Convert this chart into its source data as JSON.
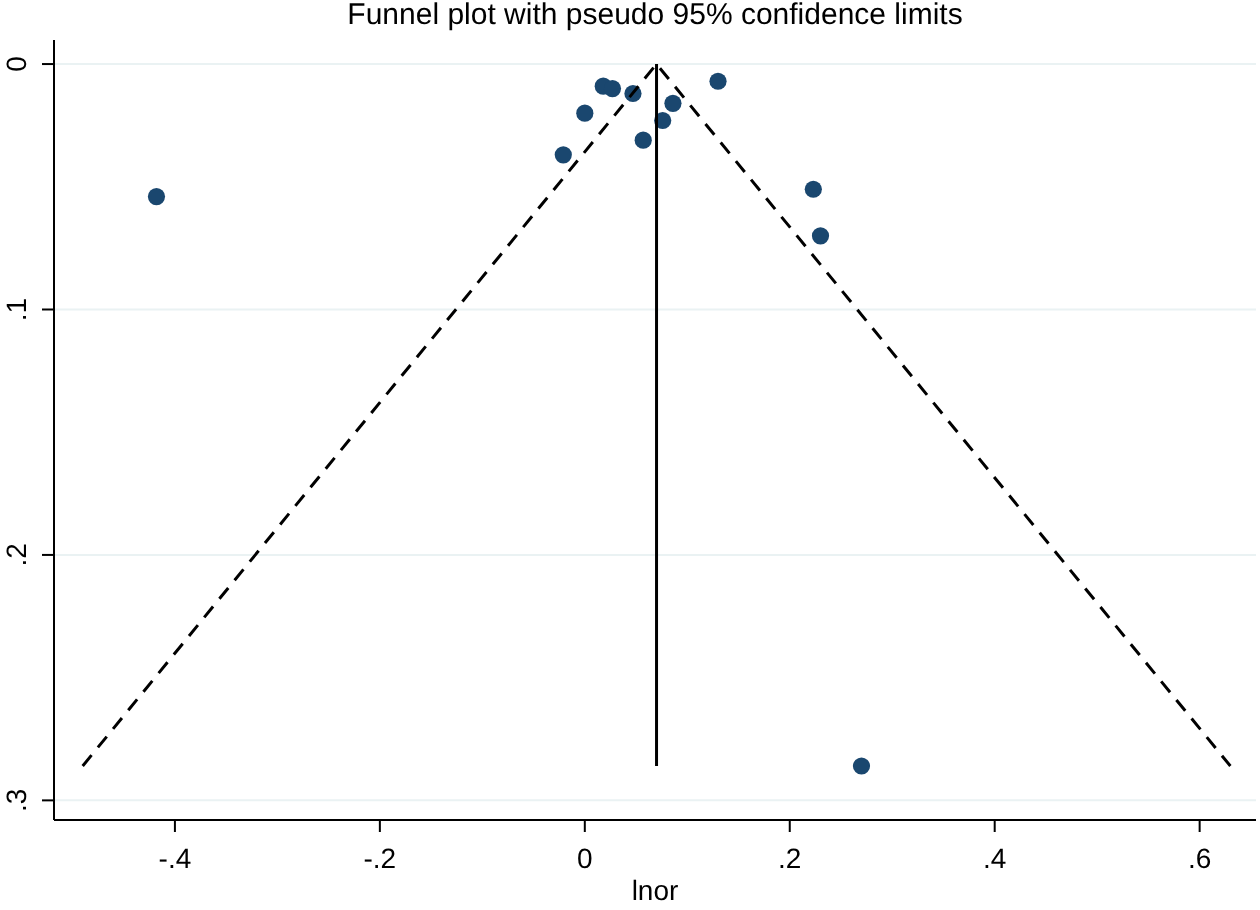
{
  "chart_data": {
    "type": "scatter",
    "title": "Funnel plot with pseudo 95% confidence limits",
    "xlabel": "lnor",
    "grid": "y",
    "xlim": [
      -0.518,
      0.655
    ],
    "ylim": [
      0.308,
      -0.0098
    ],
    "xticks": [
      {
        "value": -0.4,
        "label": "-.4"
      },
      {
        "value": -0.2,
        "label": "-.2"
      },
      0,
      {
        "value": 0.2,
        "label": ".2"
      },
      {
        "value": 0.4,
        "label": ".4"
      },
      {
        "value": 0.6,
        "label": ".6"
      }
    ],
    "yticks": [
      0,
      {
        "value": 0.1,
        "label": ".1"
      },
      {
        "value": 0.2,
        "label": ".2"
      },
      {
        "value": 0.3,
        "label": ".3"
      }
    ],
    "series": [
      {
        "color": "#1a476f",
        "marker": "circle",
        "x": [
          -0.418,
          0.018,
          0.027,
          0.047,
          0.0,
          -0.021,
          0.057,
          0.076,
          0.086,
          0.13,
          0.223,
          0.23,
          0.27
        ],
        "values": [
          0.054,
          0.009,
          0.01,
          0.012,
          0.02,
          0.037,
          0.031,
          0.023,
          0.016,
          0.007,
          0.051,
          0.07,
          0.286
        ]
      },
      {
        "type": "line",
        "color": "#000000",
        "line_style": "solid",
        "x": [
          0.07,
          0.07
        ],
        "values": [
          0.286,
          0
        ]
      },
      {
        "type": "line",
        "color": "#000000",
        "line_style": "dashed",
        "x": [
          -0.49,
          0.07,
          0.63
        ],
        "values": [
          0.286,
          0,
          0.286
        ]
      }
    ]
  }
}
